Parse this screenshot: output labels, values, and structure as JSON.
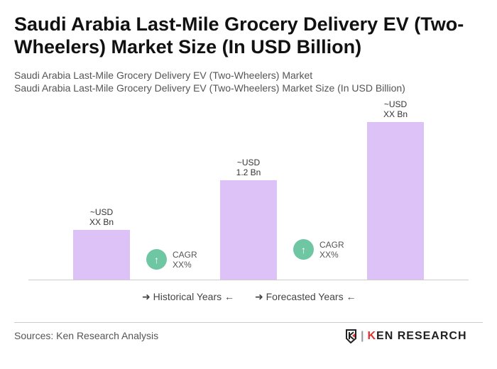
{
  "title": "Saudi Arabia Last-Mile Grocery Delivery EV (Two-Wheelers) Market Size (In USD Billion)",
  "subtitle1": "Saudi Arabia Last-Mile Grocery Delivery EV (Two-Wheelers) Market",
  "subtitle2": "Saudi Arabia Last-Mile Grocery Delivery EV (Two-Wheelers) Market Size (In USD Billion)",
  "chart_data": {
    "type": "bar",
    "bars": [
      {
        "label_line1": "~USD",
        "label_line2": "XX Bn"
      },
      {
        "label_line1": "~USD",
        "label_line2": "1.2 Bn",
        "value": 1.2
      },
      {
        "label_line1": "~USD",
        "label_line2": "XX Bn"
      }
    ],
    "cagr": [
      {
        "label": "CAGR",
        "value": "XX%"
      },
      {
        "label": "CAGR",
        "value": "XX%"
      }
    ],
    "legend": {
      "historical": "Historical Years",
      "forecasted": "Forecasted Years"
    },
    "bar_color": "#dcc2f7",
    "cagr_color": "#6fc6a3"
  },
  "sources": "Sources: Ken Research Analysis",
  "logo_text": "KEN RESEARCH"
}
